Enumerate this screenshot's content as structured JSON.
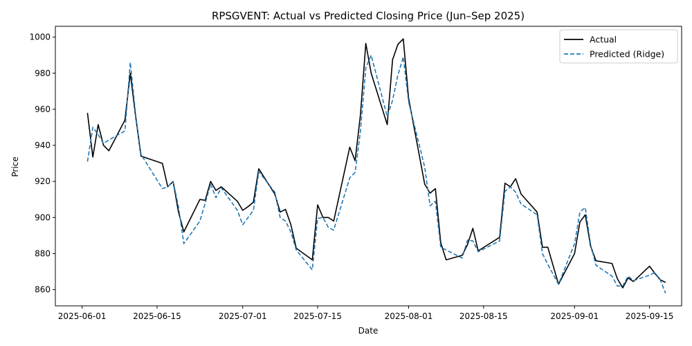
{
  "chart_data": {
    "type": "line",
    "title": "RPSGVENT: Actual vs Predicted Closing Price (Jun–Sep 2025)",
    "xlabel": "Date",
    "ylabel": "Price",
    "xlim": [
      "2025-05-27",
      "2025-09-21"
    ],
    "ylim": [
      851,
      1006
    ],
    "x_ticks": [
      "2025-06-01",
      "2025-06-15",
      "2025-07-01",
      "2025-07-15",
      "2025-08-01",
      "2025-08-15",
      "2025-09-01",
      "2025-09-15"
    ],
    "y_ticks": [
      860,
      880,
      900,
      920,
      940,
      960,
      980,
      1000
    ],
    "grid": false,
    "legend_position": "top-right",
    "series": [
      {
        "name": "Actual",
        "color": "#000000",
        "style": "solid",
        "x": [
          "2025-06-02",
          "2025-06-03",
          "2025-06-04",
          "2025-06-05",
          "2025-06-06",
          "2025-06-09",
          "2025-06-10",
          "2025-06-11",
          "2025-06-12",
          "2025-06-16",
          "2025-06-17",
          "2025-06-18",
          "2025-06-19",
          "2025-06-20",
          "2025-06-23",
          "2025-06-24",
          "2025-06-25",
          "2025-06-26",
          "2025-06-27",
          "2025-06-30",
          "2025-07-01",
          "2025-07-02",
          "2025-07-03",
          "2025-07-04",
          "2025-07-07",
          "2025-07-08",
          "2025-07-09",
          "2025-07-10",
          "2025-07-11",
          "2025-07-14",
          "2025-07-15",
          "2025-07-16",
          "2025-07-17",
          "2025-07-18",
          "2025-07-21",
          "2025-07-22",
          "2025-07-23",
          "2025-07-24",
          "2025-07-25",
          "2025-07-28",
          "2025-07-29",
          "2025-07-30",
          "2025-07-31",
          "2025-08-01",
          "2025-08-04",
          "2025-08-05",
          "2025-08-06",
          "2025-08-07",
          "2025-08-08",
          "2025-08-11",
          "2025-08-12",
          "2025-08-13",
          "2025-08-14",
          "2025-08-18",
          "2025-08-19",
          "2025-08-20",
          "2025-08-21",
          "2025-08-22",
          "2025-08-25",
          "2025-08-26",
          "2025-08-27",
          "2025-08-29",
          "2025-09-01",
          "2025-09-02",
          "2025-09-03",
          "2025-09-04",
          "2025-09-05",
          "2025-09-08",
          "2025-09-09",
          "2025-09-10",
          "2025-09-11",
          "2025-09-12",
          "2025-09-15",
          "2025-09-16",
          "2025-09-17",
          "2025-09-18"
        ],
        "values": [
          958,
          933.5,
          951.5,
          940,
          937,
          954,
          980,
          956,
          934,
          930,
          917,
          920,
          903,
          892,
          910,
          909.5,
          920,
          915,
          917,
          909,
          904,
          906,
          908.5,
          927,
          913,
          903,
          904.5,
          896,
          883,
          876.5,
          907,
          900,
          900,
          898,
          939,
          931.5,
          957,
          996.5,
          980,
          951.5,
          987.5,
          996,
          999,
          966,
          918.5,
          913.5,
          916,
          886,
          876.5,
          879,
          885,
          894,
          881.5,
          889,
          919,
          917,
          921.5,
          913,
          903,
          883.5,
          883.5,
          863,
          880,
          897.5,
          901.5,
          884,
          876,
          874.5,
          866,
          861,
          866.5,
          864.5,
          873,
          869,
          865.5,
          864
        ]
      },
      {
        "name": "Predicted (Ridge)",
        "color": "#1f77b4",
        "style": "dashed",
        "x": [
          "2025-06-02",
          "2025-06-03",
          "2025-06-04",
          "2025-06-05",
          "2025-06-06",
          "2025-06-09",
          "2025-06-10",
          "2025-06-11",
          "2025-06-12",
          "2025-06-16",
          "2025-06-17",
          "2025-06-18",
          "2025-06-19",
          "2025-06-20",
          "2025-06-23",
          "2025-06-24",
          "2025-06-25",
          "2025-06-26",
          "2025-06-27",
          "2025-06-30",
          "2025-07-01",
          "2025-07-02",
          "2025-07-03",
          "2025-07-04",
          "2025-07-07",
          "2025-07-08",
          "2025-07-09",
          "2025-07-10",
          "2025-07-11",
          "2025-07-14",
          "2025-07-15",
          "2025-07-16",
          "2025-07-17",
          "2025-07-18",
          "2025-07-21",
          "2025-07-22",
          "2025-07-23",
          "2025-07-24",
          "2025-07-25",
          "2025-07-28",
          "2025-07-29",
          "2025-07-30",
          "2025-07-31",
          "2025-08-01",
          "2025-08-04",
          "2025-08-05",
          "2025-08-06",
          "2025-08-07",
          "2025-08-08",
          "2025-08-11",
          "2025-08-12",
          "2025-08-13",
          "2025-08-14",
          "2025-08-18",
          "2025-08-19",
          "2025-08-20",
          "2025-08-21",
          "2025-08-22",
          "2025-08-25",
          "2025-08-26",
          "2025-08-27",
          "2025-08-29",
          "2025-09-01",
          "2025-09-02",
          "2025-09-03",
          "2025-09-04",
          "2025-09-05",
          "2025-09-08",
          "2025-09-09",
          "2025-09-10",
          "2025-09-11",
          "2025-09-12",
          "2025-09-15",
          "2025-09-16",
          "2025-09-17",
          "2025-09-18"
        ],
        "values": [
          931,
          950,
          946,
          941,
          943,
          948,
          986,
          957,
          935,
          916,
          917,
          920,
          906,
          885.5,
          898,
          908,
          918.5,
          911,
          916.5,
          904,
          896,
          900,
          904,
          925.5,
          914,
          900,
          898,
          892,
          882,
          871,
          899.5,
          900,
          894.5,
          893,
          922,
          925,
          948,
          983,
          990,
          956,
          965,
          979,
          989,
          964,
          928,
          906.5,
          909,
          883.5,
          882,
          877.5,
          887.5,
          887,
          881,
          887,
          914.5,
          917,
          914,
          907.5,
          901.5,
          880,
          874,
          863,
          885.5,
          903,
          905.5,
          885,
          873.5,
          867.5,
          862,
          862,
          867.5,
          865,
          868,
          869.5,
          865.5,
          858
        ]
      }
    ]
  }
}
